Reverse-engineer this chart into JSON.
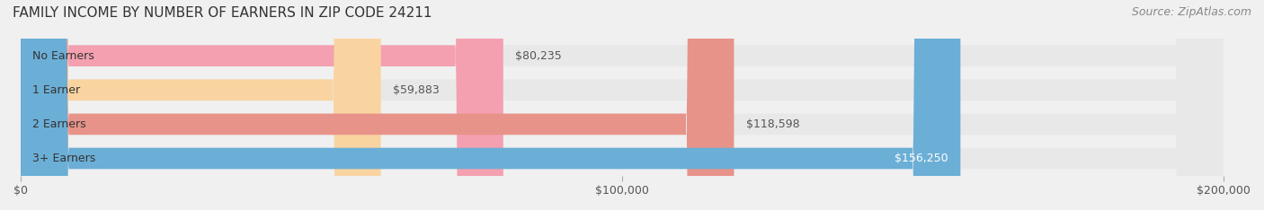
{
  "title": "FAMILY INCOME BY NUMBER OF EARNERS IN ZIP CODE 24211",
  "source": "Source: ZipAtlas.com",
  "categories": [
    "No Earners",
    "1 Earner",
    "2 Earners",
    "3+ Earners"
  ],
  "values": [
    80235,
    59883,
    118598,
    156250
  ],
  "bar_colors": [
    "#f4a0b0",
    "#f9d4a0",
    "#e8938a",
    "#6baed6"
  ],
  "label_colors": [
    "#555555",
    "#555555",
    "#555555",
    "#ffffff"
  ],
  "bar_labels": [
    "$80,235",
    "$59,883",
    "$118,598",
    "$156,250"
  ],
  "xlim": [
    0,
    200000
  ],
  "xticks": [
    0,
    100000,
    200000
  ],
  "xtick_labels": [
    "$0",
    "$100,000",
    "$200,000"
  ],
  "background_color": "#f0f0f0",
  "bar_bg_color": "#e8e8e8",
  "title_fontsize": 11,
  "source_fontsize": 9,
  "label_fontsize": 9,
  "tick_fontsize": 9
}
